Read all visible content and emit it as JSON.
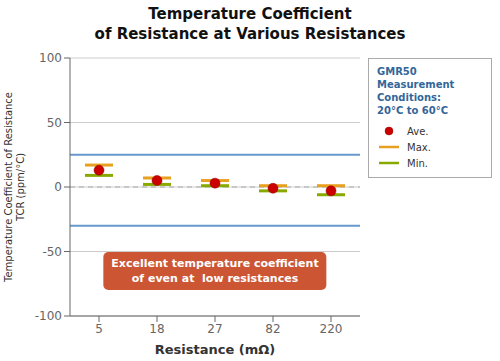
{
  "chart_data": {
    "type": "range",
    "title": "Temperature Coefficient\nof Resistance at Various Resistances",
    "x_label": "Resistance (mΩ)",
    "y_label": "Temperature Coefficient of Resistance\nTCR (ppm/°C)",
    "categories": [
      "5",
      "18",
      "27",
      "82",
      "220"
    ],
    "series": [
      {
        "name": "Ave.",
        "color": "#cc0000",
        "marker": "circle",
        "values": [
          13,
          5,
          3,
          -1,
          -3
        ]
      },
      {
        "name": "Max.",
        "color": "#e8a020",
        "marker": "line",
        "values": [
          17,
          7,
          5,
          1,
          1
        ]
      },
      {
        "name": "Min.",
        "color": "#88aa00",
        "marker": "line",
        "values": [
          9,
          2,
          1,
          -3,
          -6
        ]
      }
    ],
    "ylim": [
      -100,
      100
    ],
    "yticks": [
      -100,
      -50,
      0,
      50,
      100
    ],
    "grid": true,
    "reference_lines": [
      {
        "value": 25,
        "color": "#6699cc"
      },
      {
        "value": -30,
        "color": "#6699cc"
      },
      {
        "value": 0,
        "color": "#aaaaaa",
        "line_style": "dashed"
      }
    ],
    "annotations": [
      {
        "text": "Excellent temperature coefficient\nof even at  low resistances",
        "color": "#cc5533"
      }
    ],
    "legend_title": {
      "text": "GMR50\nMeasurement\nConditions:\n20°C to 60°C",
      "color": "#336699"
    }
  }
}
